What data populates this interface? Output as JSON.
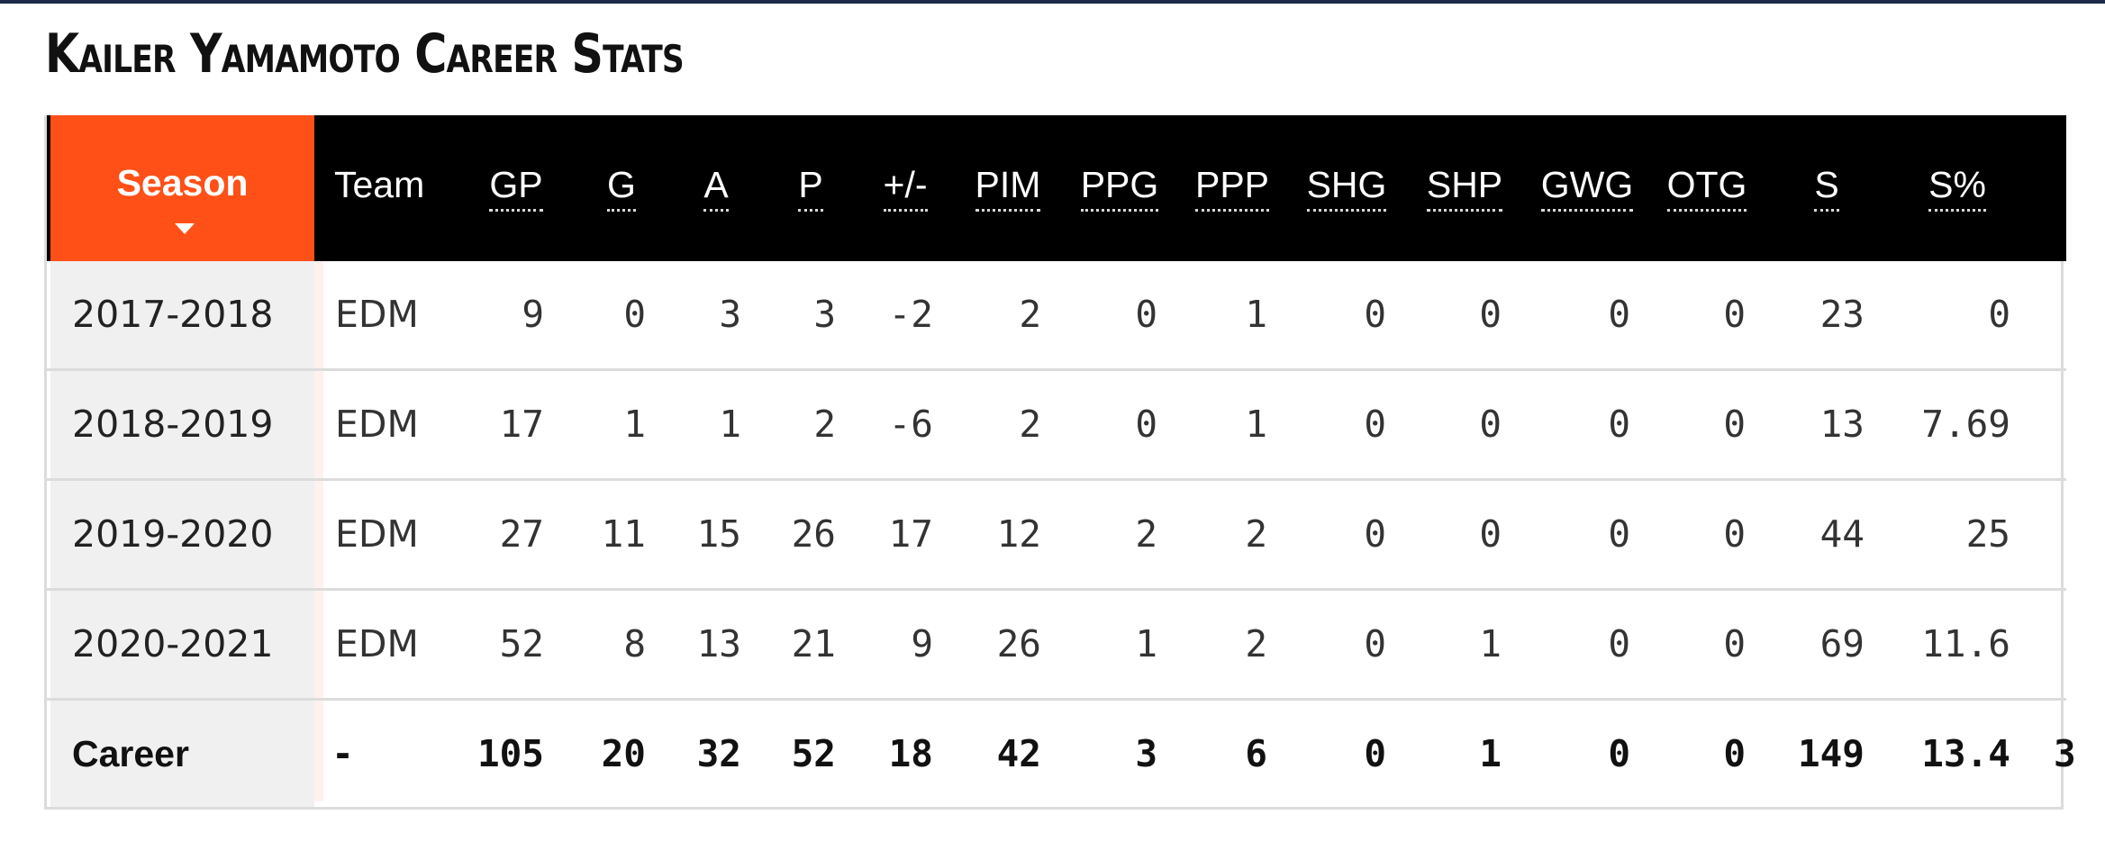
{
  "title": "Kailer Yamamoto Career Stats",
  "colors": {
    "accent": "#ff5017",
    "header_bg": "#000000",
    "top_bar": "#1c2a48"
  },
  "header": {
    "season": "Season",
    "team": "Team",
    "stats": [
      "GP",
      "G",
      "A",
      "P",
      "+/-",
      "PIM",
      "PPG",
      "PPP",
      "SHG",
      "SHP",
      "GWG",
      "OTG",
      "S",
      "S%"
    ]
  },
  "rows": [
    {
      "season": "2017-2018",
      "team": "EDM",
      "stats": [
        "9",
        "0",
        "3",
        "3",
        "-2",
        "2",
        "0",
        "1",
        "0",
        "0",
        "0",
        "0",
        "23",
        "0"
      ]
    },
    {
      "season": "2018-2019",
      "team": "EDM",
      "stats": [
        "17",
        "1",
        "1",
        "2",
        "-6",
        "2",
        "0",
        "1",
        "0",
        "0",
        "0",
        "0",
        "13",
        "7.69"
      ]
    },
    {
      "season": "2019-2020",
      "team": "EDM",
      "stats": [
        "27",
        "11",
        "15",
        "26",
        "17",
        "12",
        "2",
        "2",
        "0",
        "0",
        "0",
        "0",
        "44",
        "25"
      ]
    },
    {
      "season": "2020-2021",
      "team": "EDM",
      "stats": [
        "52",
        "8",
        "13",
        "21",
        "9",
        "26",
        "1",
        "2",
        "0",
        "1",
        "0",
        "0",
        "69",
        "11.6"
      ]
    }
  ],
  "career": {
    "season": "Career",
    "team": "-",
    "stats": [
      "105",
      "20",
      "32",
      "52",
      "18",
      "42",
      "3",
      "6",
      "0",
      "1",
      "0",
      "0",
      "149",
      "13.4"
    ],
    "overflow": "3"
  }
}
